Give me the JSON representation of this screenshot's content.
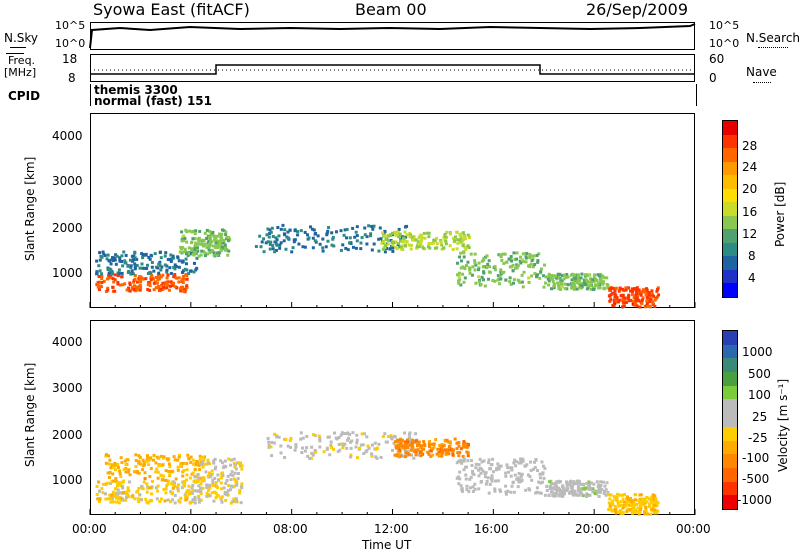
{
  "header": {
    "station": "Syowa East (fitACF)",
    "beam": "Beam 00",
    "date": "26/Sep/2009"
  },
  "top_panels": {
    "nsky_label": "N.Sky",
    "nsky_ticks": [
      "10^5",
      "10^0"
    ],
    "nsearch_label": "N.Search",
    "nsearch_ticks": [
      "10^5",
      "10^0"
    ],
    "freq_label_1": "Freq.",
    "freq_label_2": "[MHz]",
    "freq_ticks": [
      "18",
      "8"
    ],
    "nave_label": "Nave",
    "nave_ticks": [
      "60",
      "0"
    ],
    "cpid_label": "CPID",
    "cpid_lines": [
      "themis 3300",
      "normal (fast) 151"
    ]
  },
  "axes": {
    "ylabel": "Slant Range [km]",
    "yticks": [
      "4000",
      "3000",
      "2000",
      "1000"
    ],
    "xticks": [
      "00:00",
      "04:00",
      "08:00",
      "12:00",
      "16:00",
      "20:00",
      "00:00"
    ],
    "xlabel": "Time UT"
  },
  "power_colorbar": {
    "label": "Power [dB]",
    "ticks": [
      "28",
      "24",
      "20",
      "16",
      "12",
      "8",
      "4"
    ],
    "colors": [
      "#e60000",
      "#ff3300",
      "#ff6600",
      "#ff9900",
      "#ffbb00",
      "#ffdd00",
      "#c8dc28",
      "#88c850",
      "#50a070",
      "#2c8c84",
      "#1e64a0",
      "#1e32c8",
      "#0000ff"
    ]
  },
  "velocity_colorbar": {
    "label": "Velocity [m s⁻¹]",
    "ticks": [
      "1000",
      "500",
      "100",
      "25",
      "-25",
      "-100",
      "-500",
      "-1000"
    ],
    "colors": [
      "#2840b4",
      "#2c68b0",
      "#3a8a7a",
      "#4aa040",
      "#7acc3a",
      "#bbbbbb",
      "#bbbbbb",
      "#ffcc00",
      "#ffaa00",
      "#ff8800",
      "#ff6600",
      "#ff3300",
      "#ee0000"
    ]
  },
  "chart_data": [
    {
      "type": "heatmap",
      "title": "Power [dB]",
      "xlabel": "Time UT",
      "ylabel": "Slant Range [km]",
      "xlim": [
        0,
        24
      ],
      "ylim": [
        200,
        4600
      ],
      "clim": [
        0,
        30
      ],
      "regions": [
        {
          "t0": 0.2,
          "t1": 3.8,
          "r0": 600,
          "r1": 1000,
          "value": 26
        },
        {
          "t0": 0.2,
          "t1": 4.2,
          "r0": 1000,
          "r1": 1500,
          "value": 6
        },
        {
          "t0": 3.5,
          "t1": 5.5,
          "r0": 1400,
          "r1": 2000,
          "value": 12
        },
        {
          "t0": 6.5,
          "t1": 12.5,
          "r0": 1500,
          "r1": 2100,
          "value": 6
        },
        {
          "t0": 11.5,
          "t1": 15.0,
          "r0": 1550,
          "r1": 1950,
          "value": 14
        },
        {
          "t0": 14.5,
          "t1": 18.0,
          "r0": 700,
          "r1": 1500,
          "value": 12
        },
        {
          "t0": 18.0,
          "t1": 20.5,
          "r0": 650,
          "r1": 1000,
          "value": 12
        },
        {
          "t0": 20.5,
          "t1": 22.5,
          "r0": 250,
          "r1": 700,
          "value": 27
        }
      ]
    },
    {
      "type": "heatmap",
      "title": "Velocity [m s-1]",
      "xlabel": "Time UT",
      "ylabel": "Slant Range [km]",
      "xlim": [
        0,
        24
      ],
      "ylim": [
        200,
        4600
      ],
      "clim": [
        -1000,
        1000
      ],
      "regions": [
        {
          "t0": 0.2,
          "t1": 4.0,
          "r0": 500,
          "r1": 1000,
          "value": -150
        },
        {
          "t0": 0.5,
          "t1": 4.5,
          "r0": 1000,
          "r1": 1600,
          "value": -300
        },
        {
          "t0": 4.0,
          "t1": 6.0,
          "r0": 500,
          "r1": 1500,
          "value": -60
        },
        {
          "t0": 7.0,
          "t1": 13.0,
          "r0": 1500,
          "r1": 2100,
          "value": 0
        },
        {
          "t0": 12.0,
          "t1": 15.0,
          "r0": 1550,
          "r1": 1950,
          "value": -500
        },
        {
          "t0": 14.5,
          "t1": 18.0,
          "r0": 700,
          "r1": 1500,
          "value": 50
        },
        {
          "t0": 18.0,
          "t1": 20.5,
          "r0": 650,
          "r1": 1000,
          "value": 150
        },
        {
          "t0": 20.5,
          "t1": 22.5,
          "r0": 250,
          "r1": 700,
          "value": -200
        }
      ]
    }
  ]
}
